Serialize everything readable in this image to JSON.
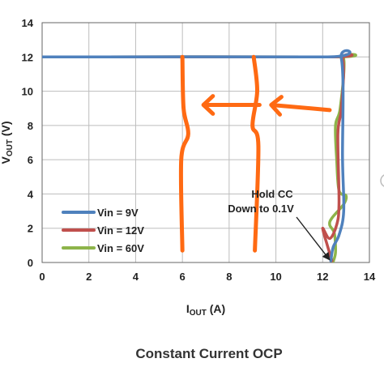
{
  "chart_data": {
    "type": "line",
    "xlabel_main": "I",
    "xlabel_sub": "OUT",
    "xlabel_unit": " (A)",
    "ylabel_main": "V",
    "ylabel_sub": "OUT",
    "ylabel_unit": " (V)",
    "xlim": [
      0,
      14
    ],
    "ylim": [
      0,
      14
    ],
    "x_ticks": [
      "0",
      "2",
      "4",
      "6",
      "8",
      "10",
      "12",
      "14"
    ],
    "y_ticks": [
      "0",
      "2",
      "4",
      "6",
      "8",
      "10",
      "12",
      "14"
    ],
    "grid": true,
    "legend_position": "bottom-left",
    "series": [
      {
        "name": "Vin = 9V",
        "color": "#4f81bd",
        "points": [
          [
            0,
            12
          ],
          [
            12.0,
            12
          ],
          [
            12.8,
            11.9
          ],
          [
            12.85,
            6
          ],
          [
            12.9,
            3
          ],
          [
            12.7,
            1.6
          ],
          [
            12.45,
            0.9
          ],
          [
            12.35,
            0.1
          ]
        ]
      },
      {
        "name": "Vin = 12V",
        "color": "#c0504d",
        "points": [
          [
            0,
            12
          ],
          [
            12.1,
            12
          ],
          [
            12.85,
            11.9
          ],
          [
            12.8,
            9
          ],
          [
            12.65,
            7.5
          ],
          [
            12.7,
            3.5
          ],
          [
            12.6,
            2.2
          ],
          [
            12.3,
            1.4
          ],
          [
            12.0,
            2.0
          ],
          [
            12.2,
            1.0
          ],
          [
            12.4,
            0.1
          ]
        ]
      },
      {
        "name": "Vin = 60V",
        "color": "#8db44a",
        "points": [
          [
            0,
            12
          ],
          [
            12.3,
            12
          ],
          [
            12.9,
            11.9
          ],
          [
            12.75,
            9
          ],
          [
            12.55,
            8
          ],
          [
            12.6,
            6
          ],
          [
            12.7,
            4.2
          ],
          [
            13.0,
            3.9
          ],
          [
            12.9,
            3.4
          ],
          [
            12.4,
            2.6
          ],
          [
            12.3,
            2.2
          ],
          [
            12.5,
            1.7
          ],
          [
            12.55,
            0.6
          ],
          [
            12.45,
            0.05
          ]
        ]
      }
    ],
    "annotation": {
      "lines": [
        "Hold CC",
        "Down to 0.1V"
      ],
      "arrow_to": [
        12.3,
        0.15
      ]
    },
    "overlay_marks": {
      "color": "#ff6a13",
      "vertical_lines": [
        {
          "points": [
            [
              6.0,
              12
            ],
            [
              6.05,
              9
            ],
            [
              6.25,
              7.5
            ],
            [
              5.95,
              6
            ],
            [
              6.0,
              0.7
            ]
          ]
        },
        {
          "points": [
            [
              9.05,
              12
            ],
            [
              9.2,
              10
            ],
            [
              9.0,
              8
            ],
            [
              9.25,
              6.8
            ],
            [
              9.1,
              0.7
            ]
          ]
        }
      ],
      "arrows": [
        {
          "from": [
            9.3,
            9.2
          ],
          "to": [
            6.9,
            9.2
          ]
        },
        {
          "from": [
            12.3,
            8.9
          ],
          "to": [
            9.8,
            9.2
          ]
        }
      ]
    },
    "caption": "Constant Current OCP"
  }
}
